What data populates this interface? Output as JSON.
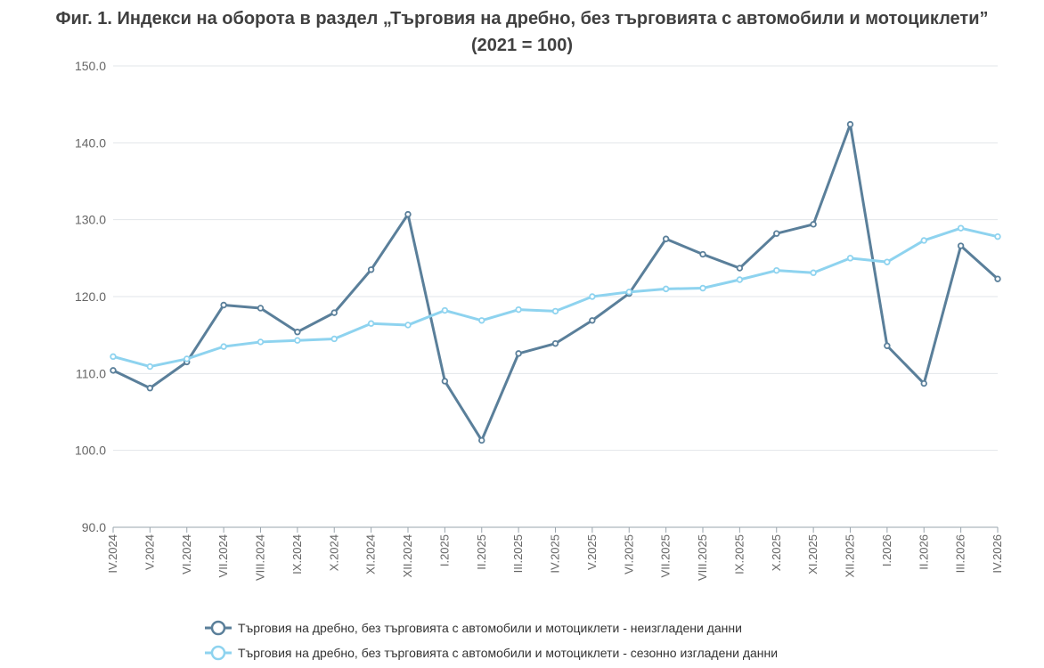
{
  "chart_data": {
    "type": "line",
    "title": "Фиг. 1. Индекси на оборота в раздел „Търговия на дребно, без търговията с автомобили и мотоциклети”",
    "subtitle": "(2021 = 100)",
    "xlabel": "",
    "ylabel": "",
    "ylim": [
      90,
      150
    ],
    "yticks": [
      "90.0",
      "100.0",
      "110.0",
      "120.0",
      "130.0",
      "140.0",
      "150.0"
    ],
    "grid": true,
    "legend_position": "bottom",
    "categories": [
      "IV.2024",
      "V.2024",
      "VI.2024",
      "VII.2024",
      "VIII.2024",
      "IX.2024",
      "X.2024",
      "XI.2024",
      "XII.2024",
      "I.2025",
      "II.2025",
      "III.2025",
      "IV.2025",
      "V.2025",
      "VI.2025",
      "VII.2025",
      "VIII.2025",
      "IX.2025",
      "X.2025",
      "XI.2025",
      "XII.2025",
      "I.2026",
      "II.2026",
      "III.2026",
      "IV.2026"
    ],
    "series": [
      {
        "name": "Търговия на дребно, без търговията с автомобили и мотоциклети - неизгладени данни",
        "color": "#5a7f9a",
        "values": [
          110.4,
          108.1,
          111.5,
          118.9,
          118.5,
          115.4,
          117.9,
          123.5,
          130.7,
          109.0,
          101.3,
          112.6,
          113.9,
          116.9,
          120.4,
          127.5,
          125.5,
          123.7,
          128.2,
          129.4,
          142.4,
          113.6,
          108.7,
          126.6,
          122.3
        ]
      },
      {
        "name": "Търговия на дребно, без търговията с автомобили и мотоциклети - сезонно изгладени данни",
        "color": "#8ed3ef",
        "values": [
          112.2,
          110.9,
          111.9,
          113.5,
          114.1,
          114.3,
          114.5,
          116.5,
          116.3,
          118.2,
          116.9,
          118.3,
          118.1,
          120.0,
          120.6,
          121.0,
          121.1,
          122.2,
          123.4,
          123.1,
          125.0,
          124.5,
          127.3,
          128.9,
          127.8
        ]
      }
    ]
  }
}
